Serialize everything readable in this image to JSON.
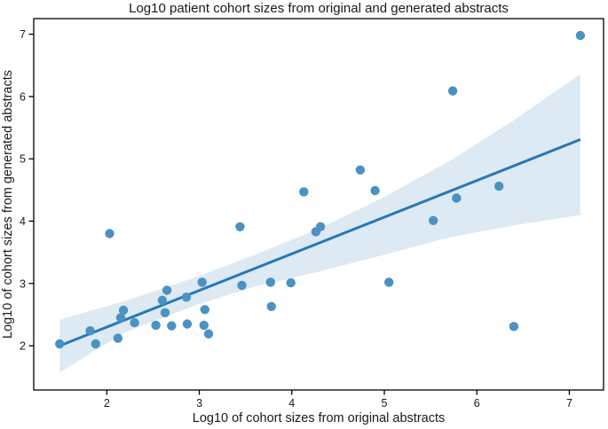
{
  "chart_data": {
    "type": "scatter",
    "title": "Log10 patient cohort sizes from original and generated abstracts",
    "xlabel": "Log10 of cohort sizes from original abstracts",
    "ylabel": "Log10 of cohort sizes from generated abstracts",
    "xlim": [
      1.21,
      7.37
    ],
    "ylim": [
      1.29,
      7.25
    ],
    "xticks": [
      2,
      3,
      4,
      5,
      6,
      7
    ],
    "yticks": [
      2,
      3,
      4,
      5,
      6,
      7
    ],
    "grid": false,
    "legend": "none",
    "points": [
      [
        1.49,
        2.03
      ],
      [
        1.82,
        2.24
      ],
      [
        1.88,
        2.03
      ],
      [
        2.03,
        3.8
      ],
      [
        2.12,
        2.12
      ],
      [
        2.15,
        2.45
      ],
      [
        2.18,
        2.57
      ],
      [
        2.3,
        2.37
      ],
      [
        2.53,
        2.33
      ],
      [
        2.6,
        2.73
      ],
      [
        2.63,
        2.53
      ],
      [
        2.65,
        2.89
      ],
      [
        2.7,
        2.32
      ],
      [
        2.86,
        2.78
      ],
      [
        2.87,
        2.35
      ],
      [
        3.03,
        3.02
      ],
      [
        3.05,
        2.33
      ],
      [
        3.06,
        2.58
      ],
      [
        3.1,
        2.19
      ],
      [
        3.44,
        3.91
      ],
      [
        3.46,
        2.97
      ],
      [
        3.77,
        3.02
      ],
      [
        3.78,
        2.63
      ],
      [
        3.99,
        3.01
      ],
      [
        4.13,
        4.47
      ],
      [
        4.26,
        3.83
      ],
      [
        4.31,
        3.91
      ],
      [
        4.74,
        4.82
      ],
      [
        4.9,
        4.49
      ],
      [
        5.05,
        3.02
      ],
      [
        5.53,
        4.01
      ],
      [
        5.74,
        6.09
      ],
      [
        5.78,
        4.37
      ],
      [
        6.24,
        4.56
      ],
      [
        6.4,
        2.31
      ],
      [
        7.12,
        6.98
      ]
    ],
    "regression_line": {
      "x": [
        1.49,
        7.12
      ],
      "y": [
        2.0,
        5.31
      ]
    },
    "confidence_band": {
      "top": [
        [
          1.49,
          2.42
        ],
        [
          2.2,
          2.72
        ],
        [
          3.0,
          3.12
        ],
        [
          3.6,
          3.46
        ],
        [
          4.3,
          3.88
        ],
        [
          5.0,
          4.39
        ],
        [
          5.7,
          4.96
        ],
        [
          6.4,
          5.62
        ],
        [
          7.12,
          6.36
        ]
      ],
      "bottom": [
        [
          1.49,
          1.57
        ],
        [
          2.2,
          2.22
        ],
        [
          3.0,
          2.67
        ],
        [
          3.6,
          2.95
        ],
        [
          4.3,
          3.19
        ],
        [
          5.0,
          3.46
        ],
        [
          5.7,
          3.74
        ],
        [
          6.4,
          3.93
        ],
        [
          7.12,
          4.1
        ]
      ]
    },
    "colors": {
      "point": "#4B92C3",
      "line": "#2878B5",
      "band": "#DDEAF3",
      "spine": "#000000",
      "text": "#1a1a1a"
    },
    "marker_radius": 5.2,
    "line_width": 3
  }
}
